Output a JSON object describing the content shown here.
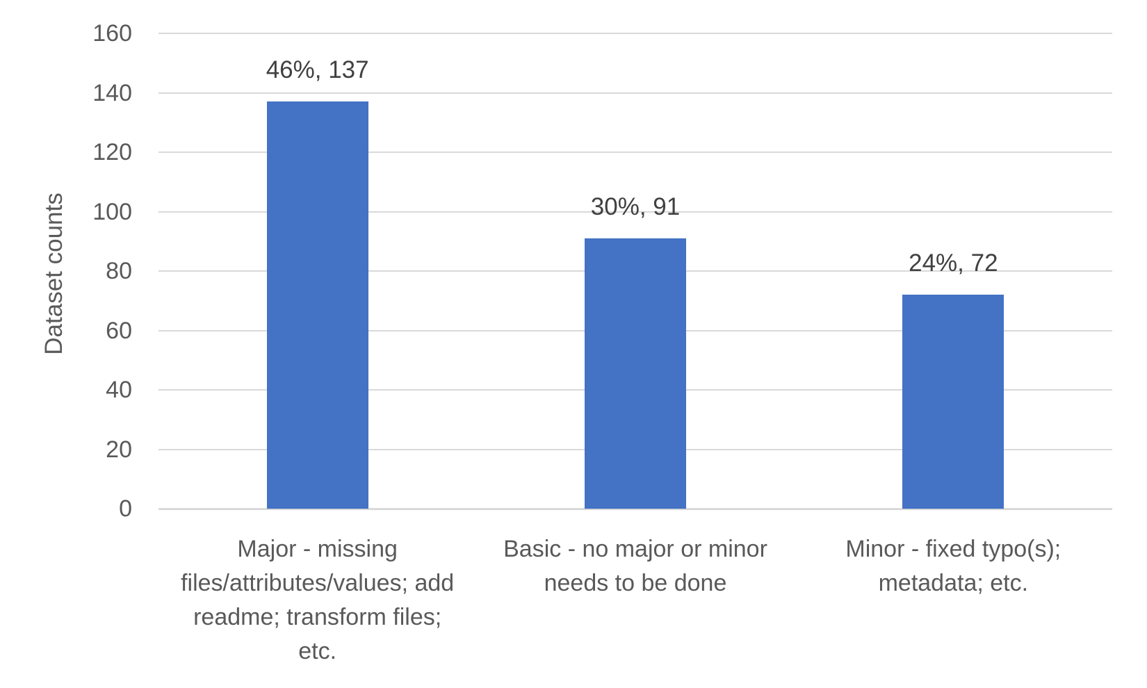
{
  "chart_data": {
    "type": "bar",
    "title": "",
    "xlabel": "",
    "ylabel": "Dataset counts",
    "ylim": [
      0,
      160
    ],
    "yticks": [
      0,
      20,
      40,
      60,
      80,
      100,
      120,
      140,
      160
    ],
    "grid": "horizontal",
    "legend_position": "none",
    "categories": [
      "Major - missing files/attributes/values; add readme; transform files; etc.",
      "Basic -  no major or minor needs to be done",
      "Minor - fixed typo(s); metadata; etc."
    ],
    "values": [
      137,
      91,
      72
    ],
    "percentages": [
      46,
      30,
      24
    ],
    "data_labels": [
      "46%, 137",
      "30%, 91",
      "24%, 72"
    ],
    "x_label_lines": [
      [
        "Major - missing",
        "files/attributes/values; add",
        "readme; transform files;",
        "etc."
      ],
      [
        "Basic -  no major or minor",
        "needs to be done"
      ],
      [
        "Minor - fixed typo(s);",
        "metadata; etc."
      ]
    ]
  },
  "colors": {
    "bar": "#4472C4",
    "axis_text": "#595959",
    "data_label_text": "#404040",
    "gridline": "#D9D9D9",
    "background": "#FFFFFF"
  }
}
